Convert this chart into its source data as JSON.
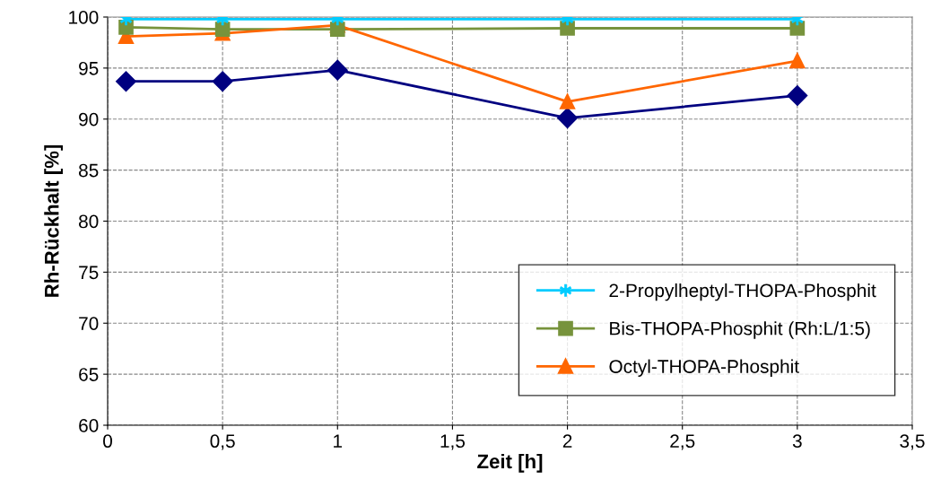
{
  "chart_data": {
    "type": "line",
    "xlabel": "Zeit [h]",
    "ylabel": "Rh-Rückhalt [%]",
    "x": [
      0.08,
      0.5,
      1,
      2,
      3
    ],
    "series": [
      {
        "name": "2-Propylheptyl-THOPA-Phosphit",
        "color": "#00ccff",
        "marker": "cross",
        "values": [
          99.8,
          99.8,
          99.8,
          99.8,
          99.8
        ]
      },
      {
        "name": "Bis-THOPA-Phosphit (Rh:L/1:5)",
        "color": "#77933c",
        "marker": "square",
        "values": [
          99.0,
          98.8,
          98.8,
          98.9,
          98.9
        ]
      },
      {
        "name": "Octyl-THOPA-Phosphit",
        "color": "#ff6600",
        "marker": "triangle",
        "values": [
          98.1,
          98.4,
          99.2,
          91.7,
          95.7
        ]
      },
      {
        "color": "#000080",
        "marker": "diamond",
        "values": [
          93.7,
          93.7,
          94.8,
          90.1,
          92.3
        ]
      }
    ],
    "xlim": [
      0,
      3.5
    ],
    "ylim": [
      60,
      100
    ],
    "xticks": [
      0,
      {
        "value": 0.5,
        "label": "0,5"
      },
      1,
      {
        "value": 1.5,
        "label": "1,5"
      },
      2,
      {
        "value": 2.5,
        "label": "2,5"
      },
      3,
      {
        "value": 3.5,
        "label": "3,5"
      }
    ],
    "yticks": [
      60,
      65,
      70,
      75,
      80,
      85,
      90,
      95,
      100
    ],
    "grid": true,
    "legend": "bottom right",
    "line_style": "solid"
  }
}
